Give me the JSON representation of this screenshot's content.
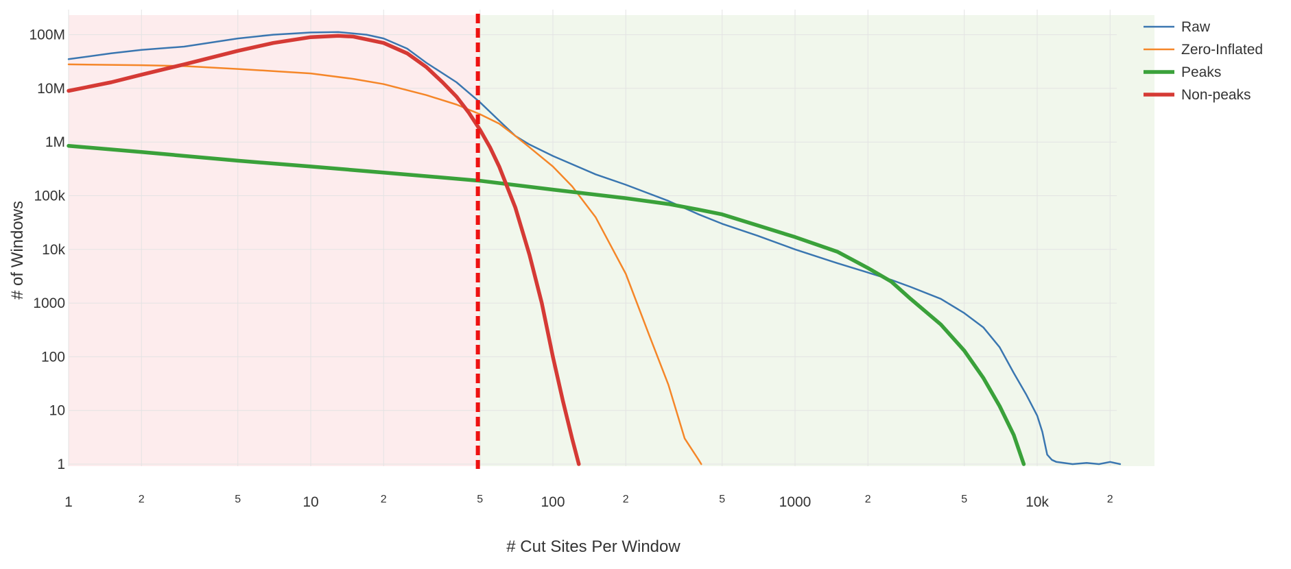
{
  "chart_data": {
    "type": "line",
    "title": "",
    "xlabel": "# Cut Sites Per Window",
    "ylabel": "# of Windows",
    "x_scale": "log",
    "y_scale": "log",
    "xlim": [
      1,
      30000
    ],
    "ylim": [
      1,
      200000000
    ],
    "grid": true,
    "legend_position": "top-right",
    "x_ticks_major": [
      {
        "value": 1,
        "label": "1"
      },
      {
        "value": 10,
        "label": "10"
      },
      {
        "value": 100,
        "label": "100"
      },
      {
        "value": 1000,
        "label": "1000"
      },
      {
        "value": 10000,
        "label": "10k"
      }
    ],
    "x_ticks_minor": [
      {
        "value": 2,
        "label": "2"
      },
      {
        "value": 5,
        "label": "5"
      },
      {
        "value": 20,
        "label": "2"
      },
      {
        "value": 50,
        "label": "5"
      },
      {
        "value": 200,
        "label": "2"
      },
      {
        "value": 500,
        "label": "5"
      },
      {
        "value": 2000,
        "label": "2"
      },
      {
        "value": 5000,
        "label": "5"
      },
      {
        "value": 20000,
        "label": "2"
      }
    ],
    "y_ticks": [
      {
        "value": 1,
        "label": "1"
      },
      {
        "value": 10,
        "label": "10"
      },
      {
        "value": 100,
        "label": "100"
      },
      {
        "value": 1000,
        "label": "1000"
      },
      {
        "value": 10000,
        "label": "10k"
      },
      {
        "value": 100000,
        "label": "100k"
      },
      {
        "value": 1000000,
        "label": "1M"
      },
      {
        "value": 10000000,
        "label": "10M"
      },
      {
        "value": 100000000,
        "label": "100M"
      }
    ],
    "threshold": {
      "x": 49,
      "color": "#ee1111",
      "style": "dashed"
    },
    "regions": [
      {
        "name": "below-threshold",
        "x_from": 1,
        "x_to": 49,
        "color": "#fdeced"
      },
      {
        "name": "above-threshold",
        "x_from": 49,
        "x_to": 28000,
        "color": "#f1f7ec"
      }
    ],
    "series": [
      {
        "name": "Raw",
        "color": "#3a76b0",
        "x": [
          1,
          1.5,
          2,
          3,
          5,
          7,
          10,
          13,
          17,
          20,
          25,
          30,
          40,
          50,
          60,
          70,
          80,
          100,
          150,
          200,
          300,
          400,
          500,
          700,
          1000,
          1500,
          2000,
          2500,
          3000,
          4000,
          5000,
          6000,
          7000,
          8000,
          9000,
          10000,
          10500,
          11000,
          11500,
          12000,
          14000,
          16000,
          18000,
          20000,
          22000
        ],
        "y": [
          35000000,
          45000000,
          52000000,
          60000000,
          85000000,
          100000000,
          110000000,
          112000000,
          100000000,
          85000000,
          55000000,
          30000000,
          13000000,
          5500000,
          2500000,
          1300000,
          900000,
          550000,
          250000,
          160000,
          80000,
          45000,
          30000,
          18000,
          10000,
          5500,
          3700,
          2700,
          2000,
          1200,
          650,
          350,
          150,
          50,
          20,
          8,
          4,
          1.5,
          1.2,
          1.1,
          1,
          1.05,
          1,
          1.1,
          1
        ]
      },
      {
        "name": "Zero-Inflated",
        "color": "#f58628",
        "x": [
          1,
          2,
          3,
          5,
          7,
          10,
          15,
          20,
          30,
          40,
          50,
          60,
          70,
          80,
          100,
          120,
          150,
          200,
          250,
          300,
          350,
          400,
          410
        ],
        "y": [
          28000000,
          27000000,
          26000000,
          23000000,
          21000000,
          19000000,
          15000000,
          12000000,
          7500000,
          5000000,
          3300000,
          2200000,
          1300000,
          800000,
          350000,
          150000,
          40000,
          3500,
          250,
          30,
          3,
          1.2,
          1
        ]
      },
      {
        "name": "Peaks",
        "color": "#3aa13a",
        "x": [
          1,
          2,
          5,
          10,
          20,
          50,
          100,
          200,
          300,
          400,
          500,
          700,
          1000,
          1500,
          2000,
          2500,
          3000,
          4000,
          5000,
          6000,
          7000,
          8000,
          8800
        ],
        "y": [
          850000,
          650000,
          450000,
          350000,
          270000,
          190000,
          130000,
          90000,
          70000,
          55000,
          45000,
          28000,
          17000,
          9000,
          4500,
          2500,
          1200,
          400,
          130,
          40,
          12,
          3.5,
          1
        ]
      },
      {
        "name": "Non-peaks",
        "color": "#d53a35",
        "x": [
          1,
          1.5,
          2,
          3,
          5,
          7,
          10,
          13,
          15,
          20,
          25,
          30,
          35,
          40,
          45,
          50,
          55,
          60,
          70,
          80,
          90,
          100,
          110,
          120,
          128
        ],
        "y": [
          9000000,
          13000000,
          18000000,
          28000000,
          50000000,
          70000000,
          90000000,
          95000000,
          92000000,
          70000000,
          45000000,
          25000000,
          13000000,
          7000000,
          3500000,
          1700000,
          800000,
          350000,
          60000,
          8000,
          1000,
          100,
          15,
          3,
          1
        ]
      }
    ]
  }
}
